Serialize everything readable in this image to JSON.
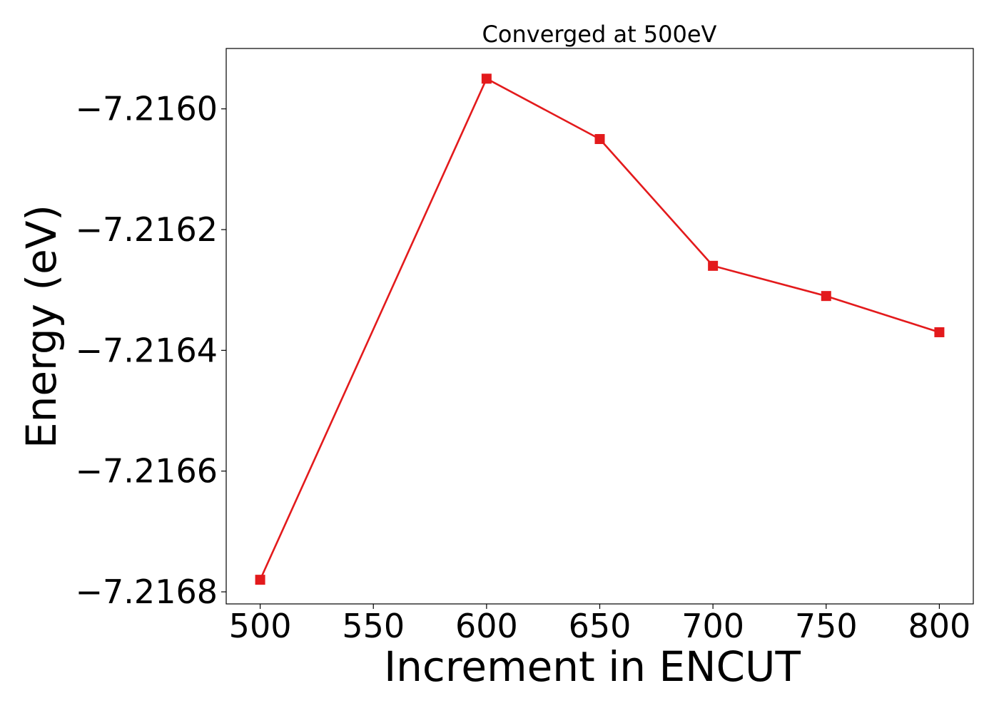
{
  "chart_data": {
    "type": "line",
    "title": "Converged at 500eV",
    "xlabel": "Increment in ENCUT",
    "ylabel": "Energy (eV)",
    "x": [
      500,
      600,
      650,
      700,
      750,
      800
    ],
    "series": [
      {
        "values": [
          -7.21678,
          -7.21595,
          -7.21605,
          -7.21626,
          -7.21631,
          -7.21637
        ],
        "color": "#e31a1c",
        "marker": "square"
      }
    ],
    "xticks": [
      500,
      550,
      600,
      650,
      700,
      750,
      800
    ],
    "xtick_labels": [
      "500",
      "550",
      "600",
      "650",
      "700",
      "750",
      "800"
    ],
    "yticks": [
      -7.2168,
      -7.2166,
      -7.2164,
      -7.2162,
      -7.216
    ],
    "ytick_labels": [
      "−7.2168",
      "−7.2166",
      "−7.2164",
      "−7.2162",
      "−7.2160"
    ],
    "xlim": [
      485,
      815
    ],
    "ylim": [
      -7.21682,
      -7.2159
    ],
    "grid": false,
    "legend": "none"
  }
}
